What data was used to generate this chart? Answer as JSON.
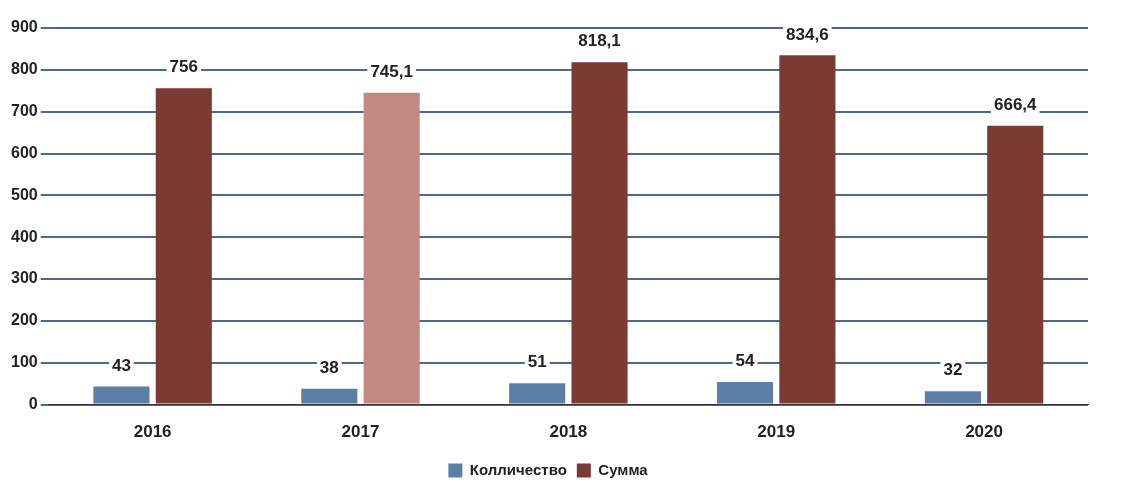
{
  "chart_data": {
    "type": "bar",
    "categories": [
      "2016",
      "2017",
      "2018",
      "2019",
      "2020"
    ],
    "series": [
      {
        "name": "Колличество",
        "color": "#5b7fa6",
        "values": [
          43,
          38,
          51,
          54,
          32
        ],
        "value_labels": [
          "43",
          "38",
          "51",
          "54",
          "32"
        ]
      },
      {
        "name": "Сумма",
        "color": "#7b3a34",
        "colors": [
          "#7b3a34",
          "#c08a82",
          "#7b3a34",
          "#7b3a34",
          "#7b3a34"
        ],
        "values": [
          756,
          745.1,
          818.1,
          834.6,
          666.4
        ],
        "value_labels": [
          "756",
          "745,1",
          "818,1",
          "834,6",
          "666,4"
        ]
      }
    ],
    "ylim": [
      0,
      900
    ],
    "yticks": [
      0,
      100,
      200,
      300,
      400,
      500,
      600,
      700,
      800,
      900
    ],
    "grid": "y",
    "legend": "bottom"
  }
}
